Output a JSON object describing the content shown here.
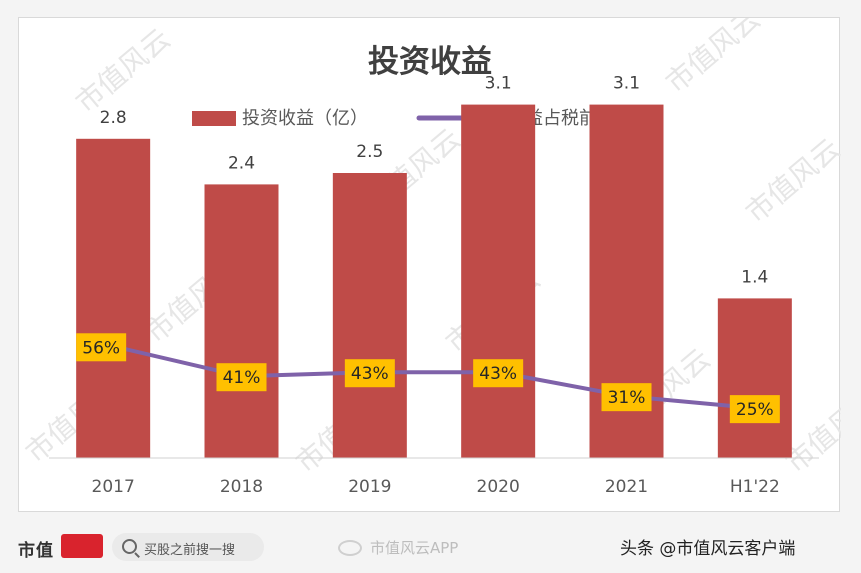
{
  "chart_data": {
    "type": "bar",
    "title": "投资收益",
    "categories": [
      "2017",
      "2018",
      "2019",
      "2020",
      "2021",
      "H1'22"
    ],
    "series": [
      {
        "name": "投资收益（亿）",
        "type": "bar",
        "values": [
          2.8,
          2.4,
          2.5,
          3.1,
          3.1,
          1.4
        ],
        "labels": [
          "2.8",
          "2.4",
          "2.5",
          "3.1",
          "3.1",
          "1.4"
        ]
      },
      {
        "name": "投资收益占税前利润比",
        "type": "line",
        "values": [
          56,
          41,
          43,
          43,
          31,
          25
        ],
        "labels": [
          "56%",
          "41%",
          "43%",
          "43%",
          "31%",
          "25%"
        ]
      }
    ],
    "ylim": [
      0,
      3.5
    ],
    "ylim_secondary": [
      0,
      200
    ],
    "grid": false,
    "legend_position": "top-center"
  },
  "colors": {
    "bar": "#bf4b48",
    "line": "#7f62a9",
    "label_bg": "#ffc000"
  },
  "watermark": "市值风云",
  "footer": {
    "brand": "市值",
    "search_placeholder": "买股之前搜一搜",
    "app_watermark": "市值风云APP",
    "source": "头条 @市值风云客户端"
  }
}
